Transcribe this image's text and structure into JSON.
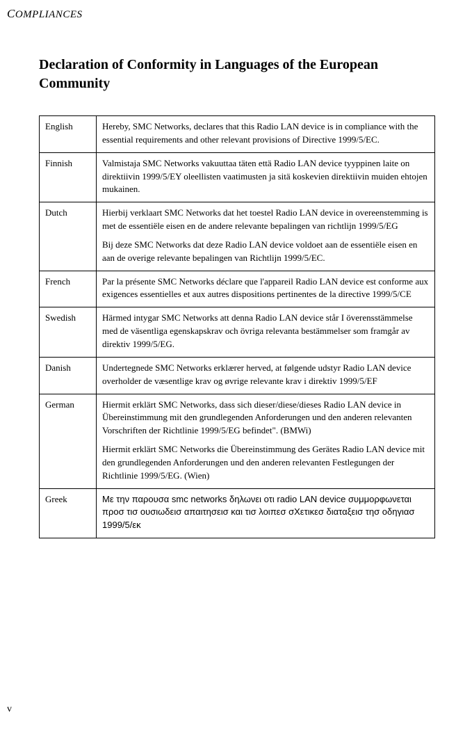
{
  "running_header_cap": "C",
  "running_header_rest": "OMPLIANCES",
  "title": "Declaration of Conformity in Languages of the European Community",
  "rows": [
    {
      "lang": "English",
      "paras": [
        "Hereby, SMC Networks, declares that this Radio LAN device is in compliance with the essential requirements and other relevant provisions of Directive 1999/5/EC."
      ]
    },
    {
      "lang": "Finnish",
      "paras": [
        "Valmistaja SMC Networks vakuuttaa täten että Radio LAN device tyyppinen laite on direktiivin 1999/5/EY oleellisten vaatimusten ja sitä koskevien direktiivin muiden ehtojen mukainen."
      ]
    },
    {
      "lang": "Dutch",
      "paras": [
        "Hierbij verklaart SMC Networks dat het toestel Radio LAN device in overeenstemming is met de essentiële eisen en de andere relevante bepalingen van richtlijn 1999/5/EG",
        "Bij deze SMC Networks dat deze Radio LAN device voldoet aan de essentiële eisen en aan de overige relevante bepalingen van Richtlijn 1999/5/EC."
      ]
    },
    {
      "lang": "French",
      "paras": [
        "Par la présente SMC Networks déclare que l'appareil Radio LAN device est conforme aux exigences essentielles et aux autres dispositions pertinentes de la directive 1999/5/CE"
      ]
    },
    {
      "lang": "Swedish",
      "paras": [
        "Härmed intygar SMC Networks att denna Radio LAN device står I överensstämmelse med de väsentliga egenskapskrav och övriga relevanta bestämmelser som framgår av direktiv 1999/5/EG."
      ]
    },
    {
      "lang": "Danish",
      "paras": [
        "Undertegnede SMC Networks erklærer herved, at følgende udstyr Radio LAN device overholder de væsentlige krav og øvrige relevante krav i direktiv 1999/5/EF"
      ]
    },
    {
      "lang": "German",
      "paras": [
        "Hiermit erklärt SMC Networks, dass sich dieser/diese/dieses Radio LAN device in Übereinstimmung mit den grundlegenden Anforderungen und den anderen relevanten Vorschriften der Richtlinie 1999/5/EG befindet\". (BMWi)",
        "Hiermit erklärt SMC Networks die Übereinstimmung des Gerätes Radio LAN device mit den grundlegenden Anforderungen und den anderen relevanten Festlegungen der Richtlinie 1999/5/EG. (Wien)"
      ]
    },
    {
      "lang": "Greek",
      "greek": true,
      "paras": [
        "Με την παρουσα smc networks δηλωνει οτι radio LAN device συμμορφωνεται προσ τισ ουσιωδεισ απαιτησεισ και τισ λοιπεσ σΧετικεσ διαταξεισ τησ οδηγιασ 1999/5/εκ"
      ]
    }
  ],
  "page_number": "v"
}
